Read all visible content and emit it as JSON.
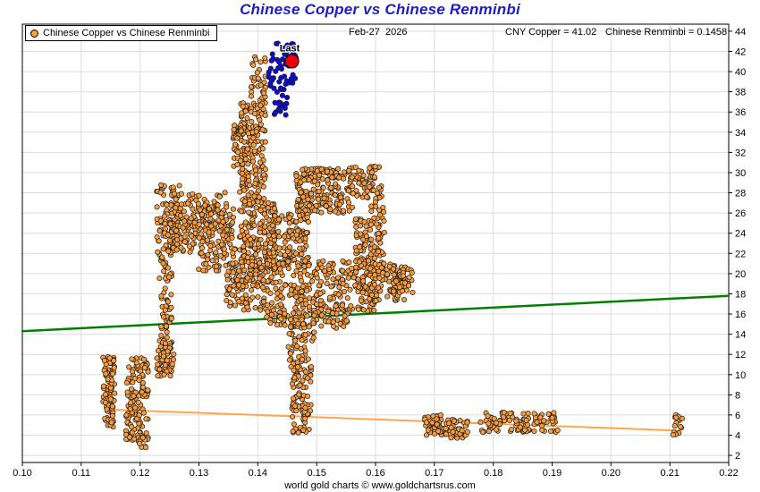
{
  "title": "Chinese Copper vs Chinese Renminbi",
  "header": {
    "date": "Feb-27  2026",
    "cny_copper": "CNY Copper = 41.02",
    "renminbi": "Chinese Renminbi = 0.1458"
  },
  "legend": {
    "label": "Chinese Copper vs Chinese Renminbi"
  },
  "annotations": {
    "last_label": "Last"
  },
  "footer": {
    "caption": "world gold charts © www.goldchartsrus.com"
  },
  "colors": {
    "title": "#1c1cc8",
    "point_fill": "#f89c3e",
    "point_stroke": "#1a1a1a",
    "recent_fill": "#0b0be0",
    "last_fill": "#ee0000",
    "trend_green": "#008000",
    "trend_orange": "#ffa54d",
    "grid": "#dcdcdc",
    "border": "#000000"
  },
  "chart_data": {
    "type": "scatter",
    "title": "Chinese Copper vs Chinese Renminbi",
    "xlim": [
      0.1,
      0.22
    ],
    "ylim": [
      1.3,
      44.7
    ],
    "xticks": [
      0.1,
      0.11,
      0.12,
      0.13,
      0.14,
      0.15,
      0.16,
      0.17,
      0.18,
      0.19,
      0.2,
      0.21,
      0.22
    ],
    "yticks": [
      2,
      4,
      6,
      8,
      10,
      12,
      14,
      16,
      18,
      20,
      22,
      24,
      26,
      28,
      30,
      32,
      34,
      36,
      38,
      40,
      42,
      44
    ],
    "grid": true,
    "legend_position": "top-left",
    "last_point": {
      "x": 0.1458,
      "y": 41.02,
      "label": "Last"
    },
    "last_label_anchor": {
      "x": 0.1437,
      "y": 42.0
    },
    "trend_lines": [
      {
        "name": "green-regression-line",
        "color_key": "trend_green",
        "x": [
          0.1,
          0.22
        ],
        "y": [
          14.3,
          17.8
        ],
        "width": 2.5
      },
      {
        "name": "orange-lower-trend-line",
        "color_key": "trend_orange",
        "x": [
          0.1144,
          0.2115
        ],
        "y": [
          6.55,
          4.45
        ],
        "width": 2
      }
    ],
    "series": [
      {
        "name": "Chinese Copper vs Chinese Renminbi",
        "color_key": "point_fill",
        "clusters": [
          [
            0.1369,
            0.139,
            26.7,
            36.9,
            85
          ],
          [
            0.1388,
            0.1413,
            27.0,
            41.6,
            120
          ],
          [
            0.1358,
            0.1385,
            30.5,
            34.8,
            45
          ],
          [
            0.1228,
            0.1268,
            21.8,
            28.8,
            115
          ],
          [
            0.1258,
            0.1312,
            22.0,
            28.0,
            100
          ],
          [
            0.1298,
            0.1362,
            20.2,
            27.0,
            115
          ],
          [
            0.131,
            0.1348,
            23.8,
            28.2,
            55
          ],
          [
            0.1232,
            0.1254,
            9.8,
            21.8,
            90
          ],
          [
            0.1228,
            0.1258,
            9.8,
            13.2,
            40
          ],
          [
            0.1369,
            0.1434,
            19.9,
            27.2,
            185
          ],
          [
            0.1465,
            0.1561,
            26.0,
            30.4,
            185
          ],
          [
            0.1551,
            0.1611,
            27.4,
            30.6,
            75
          ],
          [
            0.1418,
            0.1486,
            20.5,
            26.0,
            140
          ],
          [
            0.1565,
            0.1595,
            21.4,
            25.6,
            40
          ],
          [
            0.1398,
            0.16,
            16.0,
            21.4,
            310
          ],
          [
            0.1415,
            0.1555,
            14.6,
            16.3,
            85
          ],
          [
            0.1345,
            0.1397,
            16.4,
            21.2,
            85
          ],
          [
            0.1589,
            0.1653,
            17.2,
            21.0,
            105
          ],
          [
            0.1592,
            0.1615,
            20.5,
            27.4,
            50
          ],
          [
            0.163,
            0.1664,
            17.9,
            20.5,
            35
          ],
          [
            0.1452,
            0.1496,
            9.8,
            15.2,
            60
          ],
          [
            0.1458,
            0.149,
            4.2,
            10.0,
            80
          ],
          [
            0.1137,
            0.1157,
            6.8,
            11.8,
            70
          ],
          [
            0.114,
            0.1155,
            4.8,
            7.0,
            28
          ],
          [
            0.1176,
            0.1214,
            3.5,
            11.8,
            130
          ],
          [
            0.1196,
            0.1212,
            2.6,
            3.8,
            10
          ],
          [
            0.1683,
            0.1713,
            4.0,
            6.0,
            42
          ],
          [
            0.1703,
            0.1758,
            3.7,
            5.6,
            48
          ],
          [
            0.1778,
            0.191,
            4.3,
            6.3,
            105
          ],
          [
            0.2104,
            0.2121,
            4.0,
            6.0,
            15
          ]
        ]
      },
      {
        "name": "recent-sessions-blue",
        "color_key": "recent_fill",
        "clusters": [
          [
            0.1418,
            0.1466,
            38.2,
            42.8,
            58
          ],
          [
            0.1428,
            0.145,
            35.6,
            38.4,
            20
          ]
        ]
      }
    ]
  }
}
